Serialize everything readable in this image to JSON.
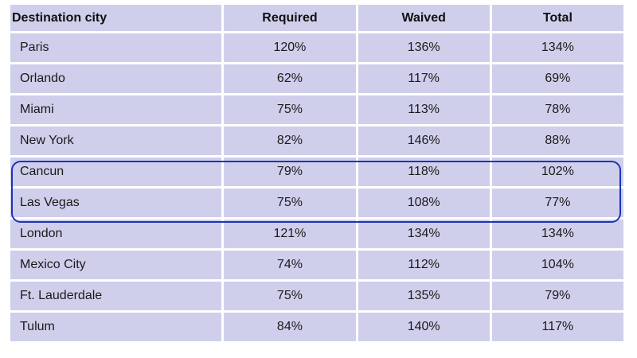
{
  "table": {
    "headers": [
      "Destination city",
      "Required",
      "Waived",
      "Total"
    ],
    "rows": [
      [
        "Paris",
        "120%",
        "136%",
        "134%"
      ],
      [
        "Orlando",
        "62%",
        "117%",
        "69%"
      ],
      [
        "Miami",
        "75%",
        "113%",
        "78%"
      ],
      [
        "New York",
        "82%",
        "146%",
        "88%"
      ],
      [
        "Cancun",
        "79%",
        "118%",
        "102%"
      ],
      [
        "Las Vegas",
        "75%",
        "108%",
        "77%"
      ],
      [
        "London",
        "121%",
        "134%",
        "134%"
      ],
      [
        "Mexico City",
        "74%",
        "112%",
        "104%"
      ],
      [
        "Ft. Lauderdale",
        "75%",
        "135%",
        "79%"
      ],
      [
        "Tulum",
        "84%",
        "140%",
        "117%"
      ]
    ],
    "highlighted_rows": [
      "Cancun",
      "Las Vegas"
    ],
    "colors": {
      "cell_background": "#cfcfec",
      "highlight_border": "#1c33b8"
    }
  }
}
